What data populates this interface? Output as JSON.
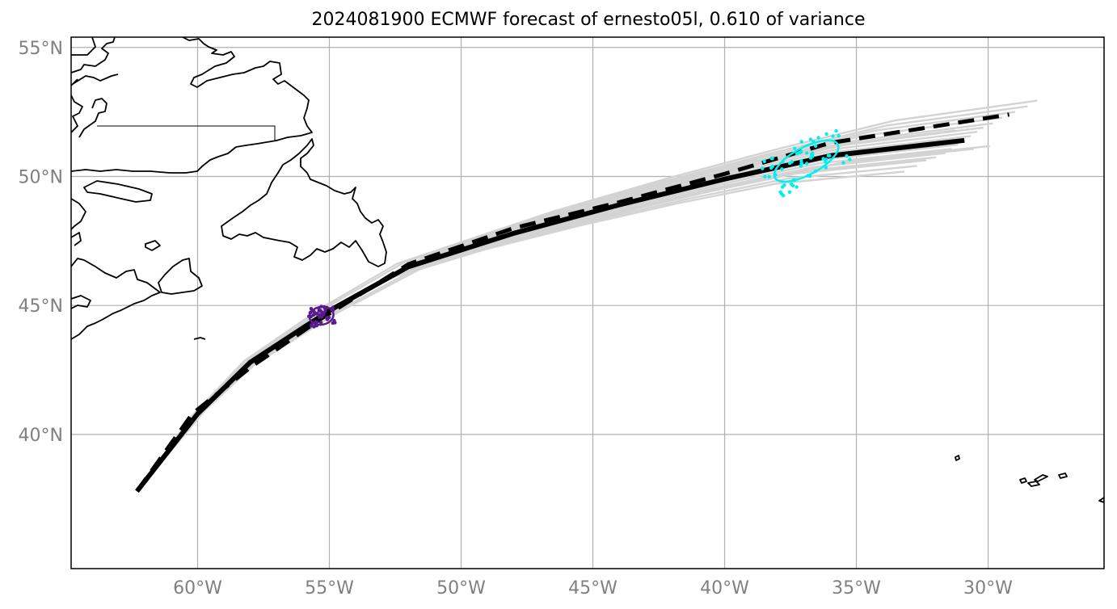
{
  "title": "2024081900 ECMWF forecast of ernesto05l, 0.610 of variance",
  "map": {
    "lon_range": [
      -64.8,
      -25.6
    ],
    "lat_range": [
      34.8,
      55.4
    ],
    "lon_ticks": [
      {
        "value": -60,
        "label": "60°W"
      },
      {
        "value": -55,
        "label": "55°W"
      },
      {
        "value": -50,
        "label": "50°W"
      },
      {
        "value": -45,
        "label": "45°W"
      },
      {
        "value": -40,
        "label": "40°W"
      },
      {
        "value": -35,
        "label": "35°W"
      },
      {
        "value": -30,
        "label": "30°W"
      }
    ],
    "lat_ticks": [
      {
        "value": 55,
        "label": "55°N"
      },
      {
        "value": 50,
        "label": "50°N"
      },
      {
        "value": 45,
        "label": "45°N"
      },
      {
        "value": 40,
        "label": "40°N"
      }
    ],
    "gridlines": true,
    "colors": {
      "ensemble": "#d3d3d3",
      "mean_track": "#000000",
      "forecast_track": "#000000",
      "early_cluster": "#5b1a8b",
      "late_cluster": "#00f0f0",
      "coast": "#000000",
      "grid": "#b0b0b0"
    },
    "mean_track": [
      [
        -62.3,
        37.8
      ],
      [
        -60.0,
        40.8
      ],
      [
        -58.0,
        42.8
      ],
      [
        -55.0,
        44.8
      ],
      [
        -52.0,
        46.5
      ],
      [
        -48.0,
        47.8
      ],
      [
        -44.0,
        48.9
      ],
      [
        -40.0,
        49.9
      ],
      [
        -36.0,
        50.8
      ],
      [
        -30.9,
        51.4
      ]
    ],
    "forecast_track": [
      [
        -62.3,
        37.8
      ],
      [
        -60.2,
        40.8
      ],
      [
        -58.0,
        42.6
      ],
      [
        -55.3,
        44.5
      ],
      [
        -52.0,
        46.6
      ],
      [
        -48.0,
        48.0
      ],
      [
        -44.0,
        49.0
      ],
      [
        -40.0,
        50.1
      ],
      [
        -36.0,
        51.3
      ],
      [
        -29.2,
        52.4
      ]
    ],
    "ensemble_offsets": [
      [
        0.0,
        0.0
      ],
      [
        0.2,
        0.15
      ],
      [
        -0.2,
        -0.15
      ],
      [
        0.4,
        0.3
      ],
      [
        -0.4,
        -0.3
      ],
      [
        0.6,
        0.45
      ],
      [
        -0.6,
        -0.45
      ],
      [
        0.9,
        0.6
      ],
      [
        -0.9,
        -0.6
      ],
      [
        1.2,
        0.8
      ],
      [
        -1.2,
        -0.7
      ],
      [
        1.6,
        1.0
      ],
      [
        -1.5,
        -0.9
      ],
      [
        0.3,
        -0.3
      ],
      [
        -0.3,
        0.35
      ],
      [
        2.0,
        1.2
      ],
      [
        -1.9,
        -1.1
      ],
      [
        0.8,
        -0.2
      ],
      [
        -0.8,
        0.25
      ],
      [
        2.3,
        1.4
      ]
    ],
    "early_cluster": {
      "center": [
        -55.3,
        44.6
      ]
    },
    "late_cluster": {
      "center": [
        -36.9,
        50.6
      ]
    }
  }
}
